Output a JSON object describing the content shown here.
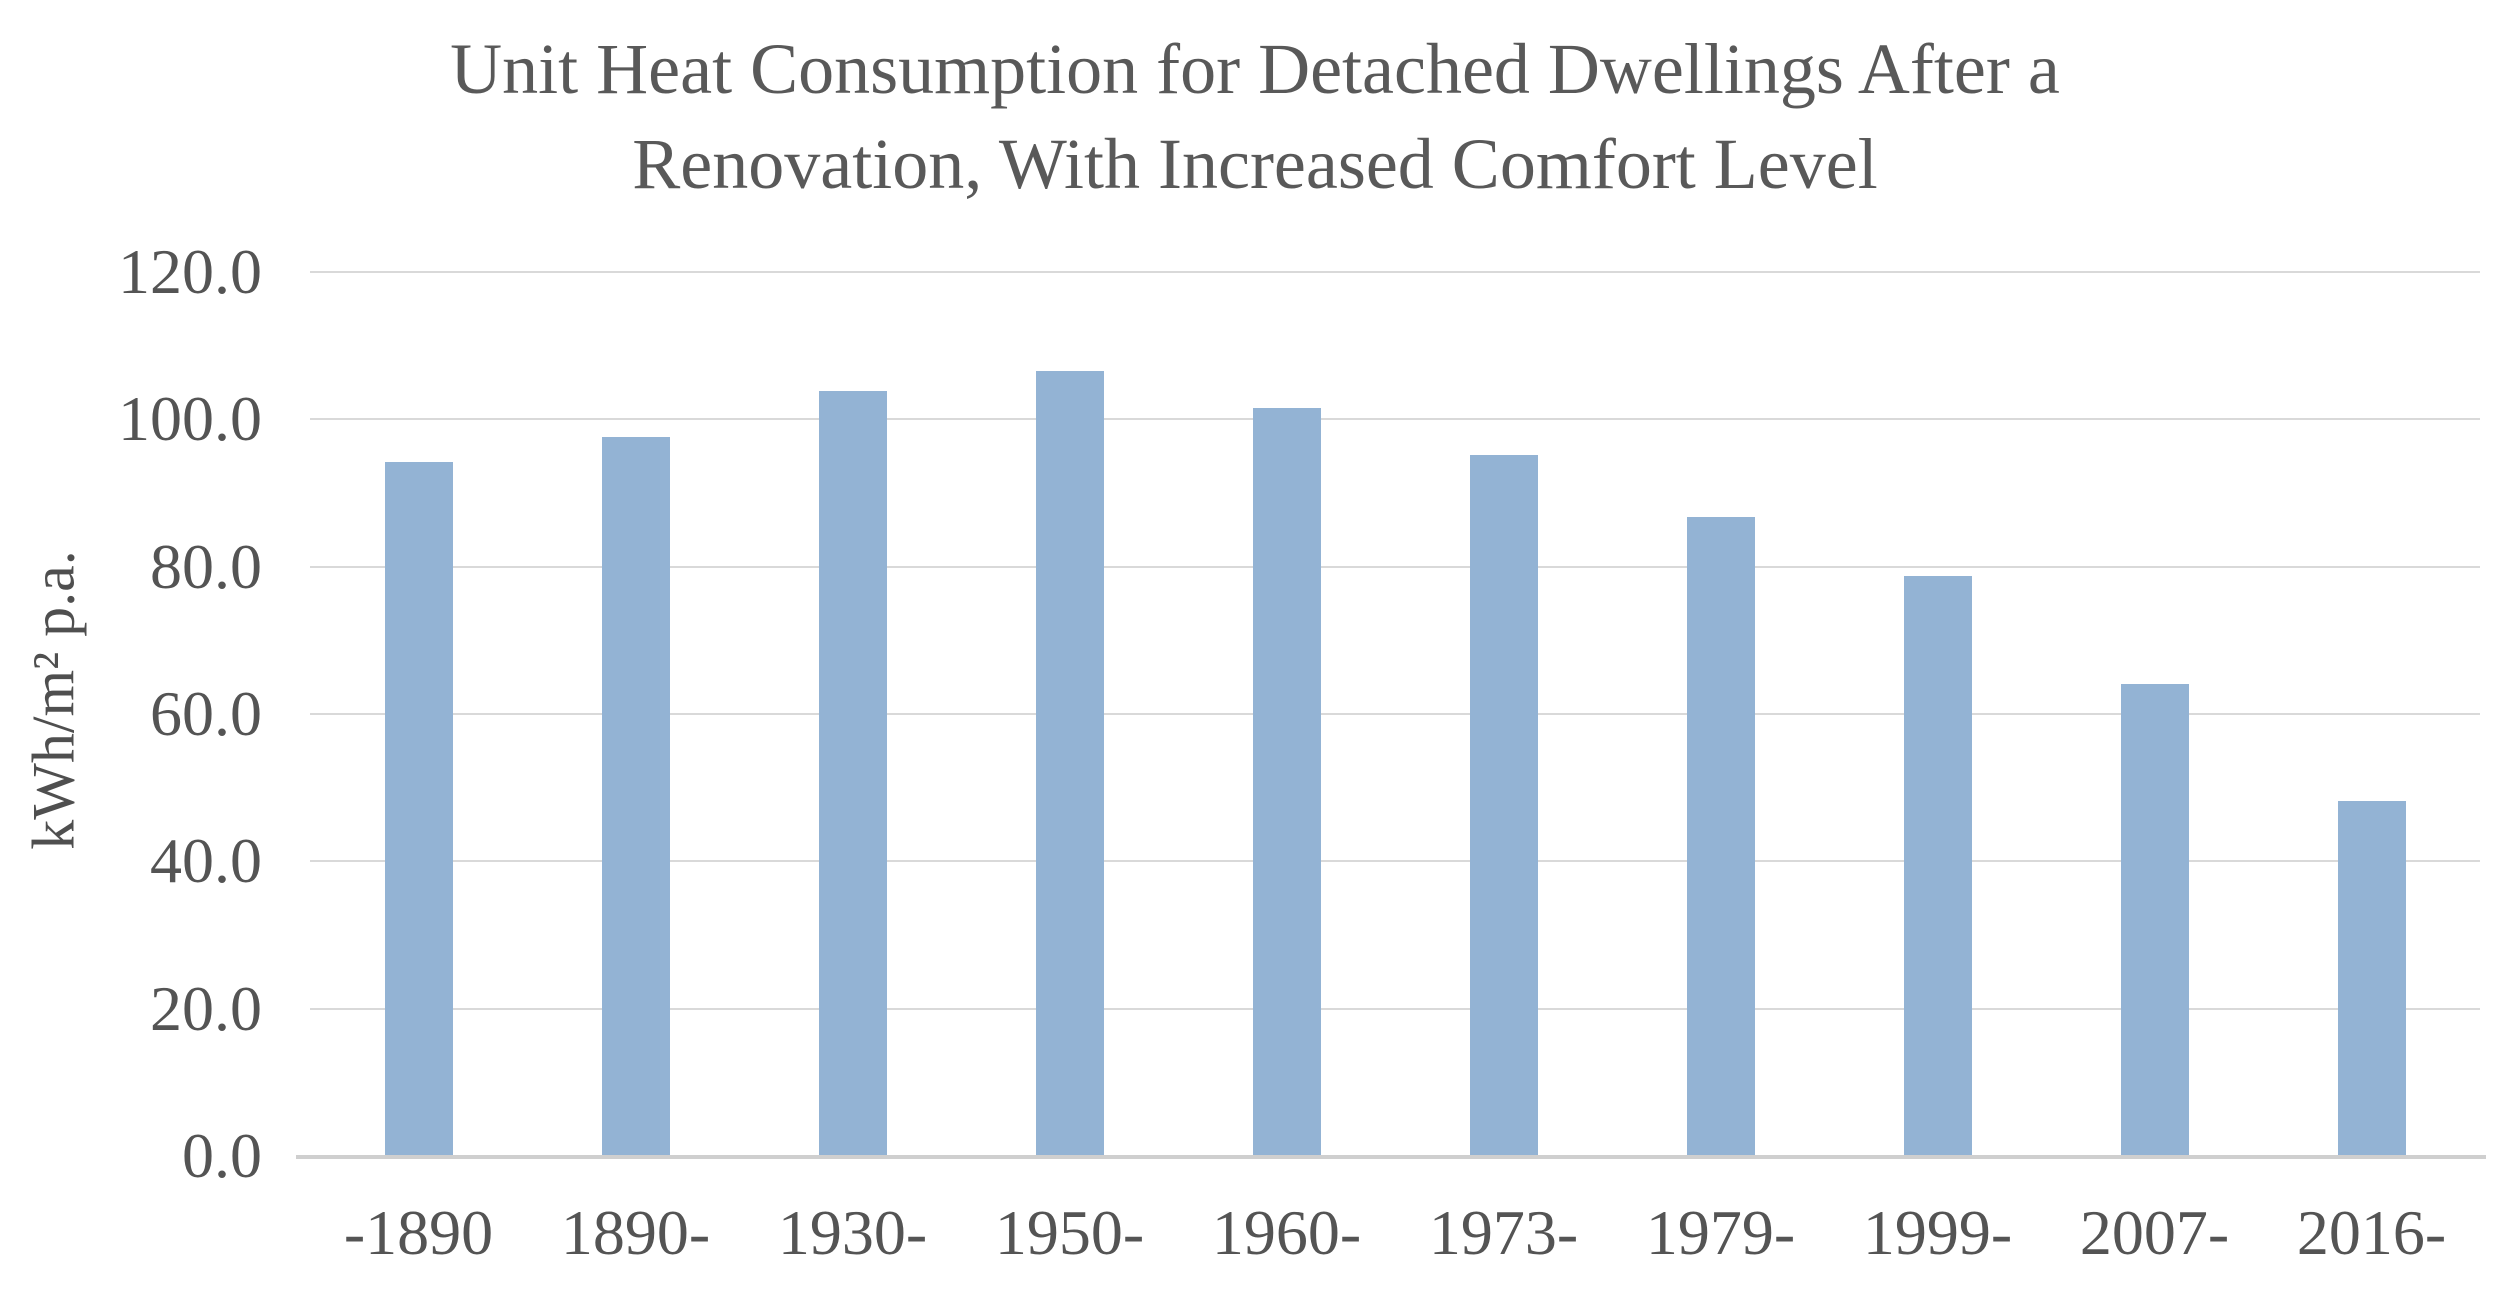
{
  "chart_data": {
    "type": "bar",
    "title": "Unit Heat Consumption for Detached Dwellings After a Renovation, With Increased Comfort Level",
    "title_lines": [
      "Unit Heat Consumption for Detached Dwellings After a",
      "Renovation, With Increased Comfort Level"
    ],
    "ylabel": "kWh/m² p.a.",
    "xlabel": "",
    "categories": [
      "-1890",
      "1890-",
      "1930-",
      "1950-",
      "1960-",
      "1973-",
      "1979-",
      "1999-",
      "2007-",
      "2016-"
    ],
    "values": [
      94.2,
      97.6,
      103.8,
      106.6,
      101.5,
      95.1,
      86.8,
      78.8,
      64.1,
      48.2
    ],
    "series_unit": "kWh/m² p.a.",
    "ylim": [
      0,
      120
    ],
    "yticks": [
      {
        "value": 0,
        "label": "0.0"
      },
      {
        "value": 20,
        "label": "20.0"
      },
      {
        "value": 40,
        "label": "40.0"
      },
      {
        "value": 60,
        "label": "60.0"
      },
      {
        "value": 80,
        "label": "80.0"
      },
      {
        "value": 100,
        "label": "100.0"
      },
      {
        "value": 120,
        "label": "120.0"
      }
    ],
    "grid": "horizontal",
    "legend": "none",
    "bar_color": "#93b3d4",
    "gridline_color": "#d9d9d9",
    "axis_line_color": "#cfcfcf",
    "text_color": "#595959"
  }
}
